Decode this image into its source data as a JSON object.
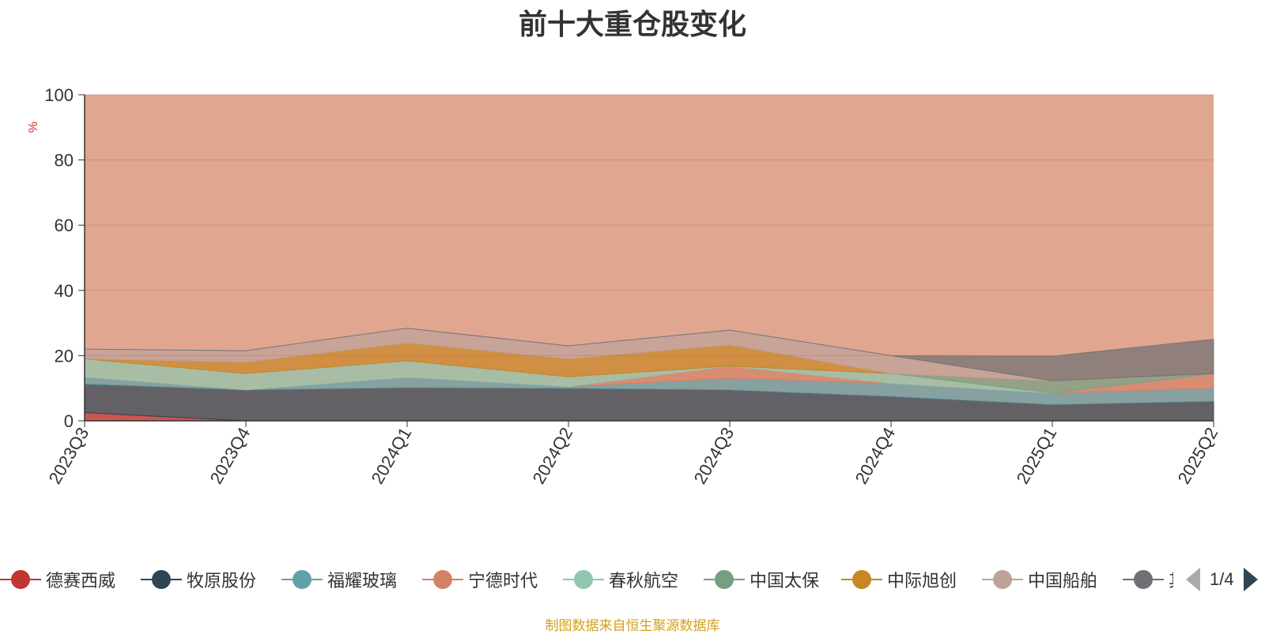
{
  "chart_data": {
    "type": "area",
    "stacked": true,
    "title": "前十大重仓股变化",
    "ylabel": "%",
    "ylim": [
      0,
      100
    ],
    "yticks": [
      0,
      20,
      40,
      60,
      80,
      100
    ],
    "grid": true,
    "legend_position": "bottom",
    "legend_page": "1/4",
    "categories": [
      "2023Q3",
      "2023Q4",
      "2024Q1",
      "2024Q2",
      "2024Q3",
      "2024Q4",
      "2025Q1",
      "2025Q2"
    ],
    "series": [
      {
        "name": "德赛西威",
        "color": "#c23531",
        "values": [
          2.5,
          0,
          0,
          0,
          0,
          0,
          0,
          0
        ]
      },
      {
        "name": "牧原股份",
        "color": "#2f4554",
        "values": [
          8.8,
          9.5,
          10.2,
          10.0,
          9.5,
          7.5,
          5.0,
          6.0
        ]
      },
      {
        "name": "福耀玻璃",
        "color": "#61a0a8",
        "values": [
          2.2,
          0,
          3.2,
          0.5,
          3.5,
          4.0,
          3.5,
          4.0
        ]
      },
      {
        "name": "宁德时代",
        "color": "#d48265",
        "values": [
          0,
          0,
          0,
          0,
          3.8,
          0,
          0,
          4.5
        ]
      },
      {
        "name": "春秋航空",
        "color": "#91c7ae",
        "values": [
          5.5,
          5.0,
          5.0,
          3.0,
          0,
          3.0,
          0,
          0
        ]
      },
      {
        "name": "中国太保",
        "color": "#749f83",
        "values": [
          0,
          0,
          0,
          0,
          0,
          0,
          3.8,
          0
        ]
      },
      {
        "name": "中际旭创",
        "color": "#ca8622",
        "values": [
          0,
          3.5,
          5.5,
          5.5,
          6.5,
          0,
          0,
          0
        ]
      },
      {
        "name": "中国船舶",
        "color": "#bda29a",
        "values": [
          3.0,
          3.5,
          4.5,
          4.0,
          4.5,
          5.5,
          0,
          0
        ]
      },
      {
        "name": "其他",
        "color": "#6e7074",
        "values": [
          0,
          0,
          0,
          0,
          0,
          0,
          7.5,
          10.5
        ]
      }
    ]
  },
  "footer": {
    "source": "制图数据来自恒生聚源数据库"
  }
}
